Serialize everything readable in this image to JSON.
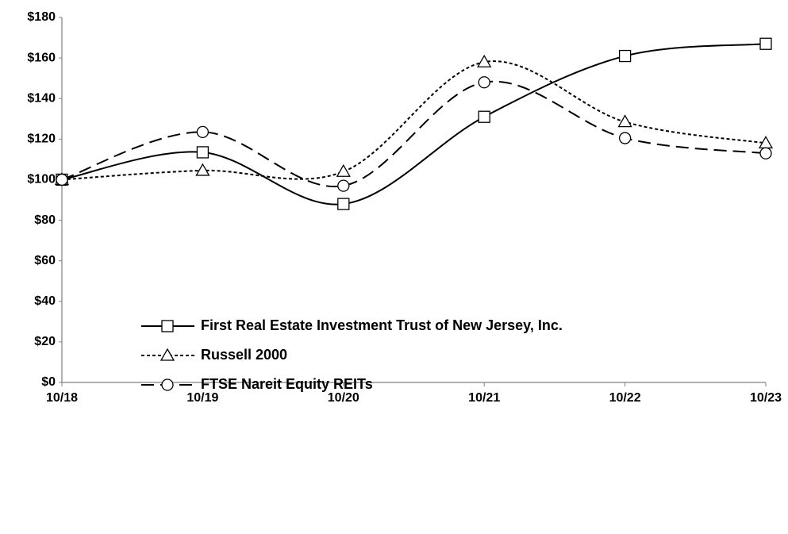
{
  "chart_data": {
    "type": "line",
    "categories": [
      "10/18",
      "10/19",
      "10/20",
      "10/21",
      "10/22",
      "10/23"
    ],
    "ylim": [
      0,
      180
    ],
    "yticks": [
      {
        "value": 0,
        "label": "$0"
      },
      {
        "value": 20,
        "label": "$20"
      },
      {
        "value": 40,
        "label": "$40"
      },
      {
        "value": 60,
        "label": "$60"
      },
      {
        "value": 80,
        "label": "$80"
      },
      {
        "value": 100,
        "label": "$100"
      },
      {
        "value": 120,
        "label": "$120"
      },
      {
        "value": 140,
        "label": "$140"
      },
      {
        "value": 160,
        "label": "$160"
      },
      {
        "value": 180,
        "label": "$180"
      }
    ],
    "grid": false,
    "smooth": true,
    "legend": "bottom",
    "series": [
      {
        "name": "First Real Estate Investment Trust of New Jersey, Inc.",
        "color": "#000000",
        "dash": "solid",
        "marker": "square",
        "values": [
          100,
          113.5,
          88,
          131,
          161,
          167
        ]
      },
      {
        "name": "Russell 2000",
        "color": "#000000",
        "dash": "dotted",
        "marker": "triangle",
        "values": [
          100,
          104.5,
          104,
          158,
          128.5,
          118
        ]
      },
      {
        "name": "FTSE Nareit Equity REITs",
        "color": "#000000",
        "dash": "dashed",
        "marker": "circle",
        "values": [
          100,
          123.5,
          97,
          148,
          120.5,
          113
        ]
      }
    ]
  }
}
